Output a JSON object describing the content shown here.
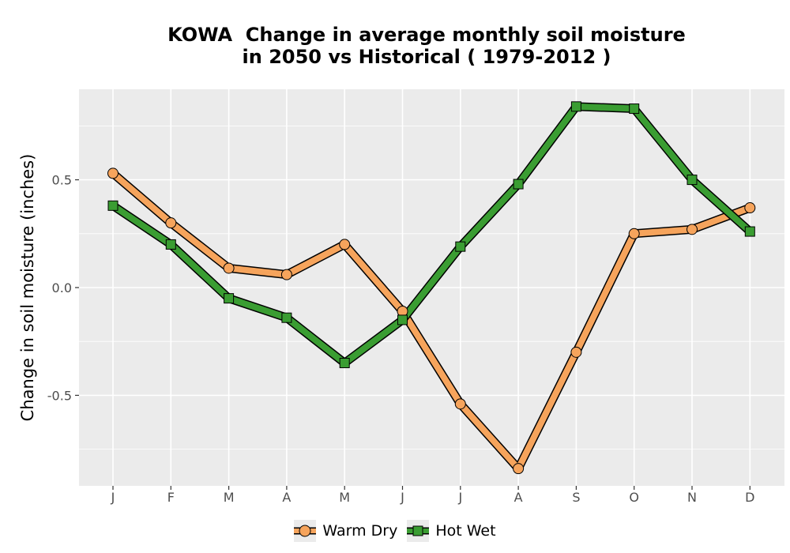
{
  "chart_data": {
    "type": "line",
    "title": "KOWA  Change in average monthly soil moisture",
    "subtitle": "in 2050 vs Historical ( 1979-2012 )",
    "xlabel": "",
    "ylabel": "Change in soil moisture (inches)",
    "categories": [
      "J",
      "F",
      "M",
      "A",
      "M",
      "J",
      "J",
      "A",
      "S",
      "O",
      "N",
      "D"
    ],
    "ylim": [
      -0.92,
      0.92
    ],
    "yticks": [
      -0.5,
      0.0,
      0.5
    ],
    "ytick_labels": [
      "-0.5",
      "0.0",
      "0.5"
    ],
    "grid": true,
    "legend_position": "bottom",
    "series": [
      {
        "name": "Warm Dry",
        "marker": "circle",
        "color": "#f6a45c",
        "values": [
          0.53,
          0.3,
          0.09,
          0.06,
          0.2,
          -0.11,
          -0.54,
          -0.84,
          -0.3,
          0.25,
          0.27,
          0.37
        ]
      },
      {
        "name": "Hot Wet",
        "marker": "square",
        "color": "#3a9d32",
        "values": [
          0.38,
          0.2,
          -0.05,
          -0.14,
          -0.35,
          -0.15,
          0.19,
          0.48,
          0.84,
          0.83,
          0.5,
          0.26
        ]
      }
    ]
  }
}
